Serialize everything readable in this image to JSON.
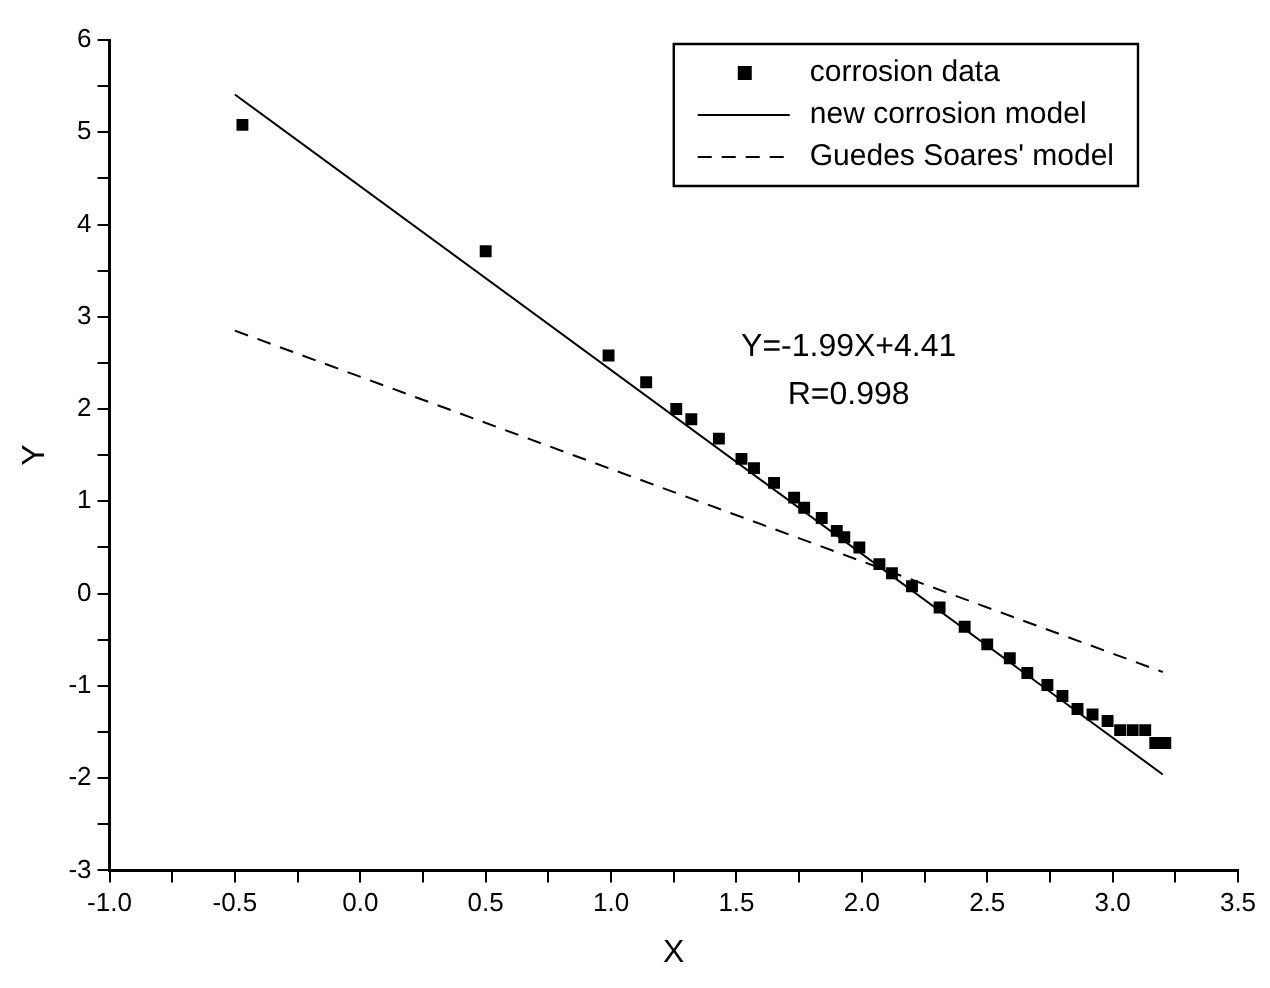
{
  "chart_data": {
    "type": "scatter",
    "xlabel": "X",
    "ylabel": "Y",
    "xlim": [
      -1.0,
      3.5
    ],
    "ylim": [
      -3,
      6
    ],
    "xticks": [
      {
        "value": -1,
        "label": "-1.0"
      },
      {
        "value": -0.75,
        "label": null
      },
      {
        "value": -0.5,
        "label": "-0.5"
      },
      {
        "value": -0.25,
        "label": null
      },
      {
        "value": 0,
        "label": "0.0"
      },
      {
        "value": 0.25,
        "label": null
      },
      {
        "value": 0.5,
        "label": "0.5"
      },
      {
        "value": 0.75,
        "label": null
      },
      {
        "value": 1,
        "label": "1.0"
      },
      {
        "value": 1.25,
        "label": null
      },
      {
        "value": 1.5,
        "label": "1.5"
      },
      {
        "value": 1.75,
        "label": null
      },
      {
        "value": 2,
        "label": "2.0"
      },
      {
        "value": 2.25,
        "label": null
      },
      {
        "value": 2.5,
        "label": "2.5"
      },
      {
        "value": 2.75,
        "label": null
      },
      {
        "value": 3,
        "label": "3.0"
      },
      {
        "value": 3.25,
        "label": null
      },
      {
        "value": 3.5,
        "label": "3.5"
      }
    ],
    "yticks": [
      -3,
      {
        "value": -2.5,
        "label": null
      },
      -2,
      {
        "value": -1.5,
        "label": null
      },
      -1,
      {
        "value": -0.5,
        "label": null
      },
      0,
      {
        "value": 0.5,
        "label": null
      },
      1,
      {
        "value": 1.5,
        "label": null
      },
      2,
      {
        "value": 2.5,
        "label": null
      },
      3,
      {
        "value": 3.5,
        "label": null
      },
      4,
      {
        "value": 4.5,
        "label": null
      },
      5,
      {
        "value": 5.5,
        "label": null
      },
      6
    ],
    "series": [
      {
        "name": "corrosion data",
        "type": "scatter",
        "marker": "square",
        "color": "#000000",
        "x": [
          -0.47,
          0.5,
          0.99,
          1.14,
          1.26,
          1.32,
          1.43,
          1.52,
          1.57,
          1.65,
          1.73,
          1.77,
          1.84,
          1.9,
          1.93,
          1.99,
          2.07,
          2.12,
          2.2,
          2.31,
          2.41,
          2.5,
          2.59,
          2.66,
          2.74,
          2.8,
          2.86,
          2.92,
          2.98,
          3.03,
          3.08,
          3.13,
          3.17,
          3.21
        ],
        "values": [
          5.08,
          3.71,
          2.58,
          2.29,
          2.0,
          1.89,
          1.68,
          1.46,
          1.36,
          1.2,
          1.04,
          0.93,
          0.82,
          0.68,
          0.61,
          0.5,
          0.32,
          0.22,
          0.08,
          -0.15,
          -0.36,
          -0.55,
          -0.7,
          -0.86,
          -0.99,
          -1.11,
          -1.25,
          -1.31,
          -1.38,
          -1.48,
          -1.48,
          -1.48,
          -1.62,
          -1.62
        ]
      },
      {
        "name": "new corrosion model",
        "type": "line",
        "line_style": "solid",
        "color": "#000000",
        "x": [
          -0.5,
          3.2
        ],
        "values": [
          5.41,
          -1.96
        ]
      },
      {
        "name": "Guedes Soares' model",
        "type": "line",
        "line_style": "dashed",
        "color": "#000000",
        "x": [
          -0.5,
          3.2
        ],
        "values": [
          2.85,
          -0.85
        ]
      }
    ],
    "annotations": [
      "Y=-1.99X+4.41",
      "R=0.998"
    ],
    "legend": "top right",
    "grid": false
  }
}
